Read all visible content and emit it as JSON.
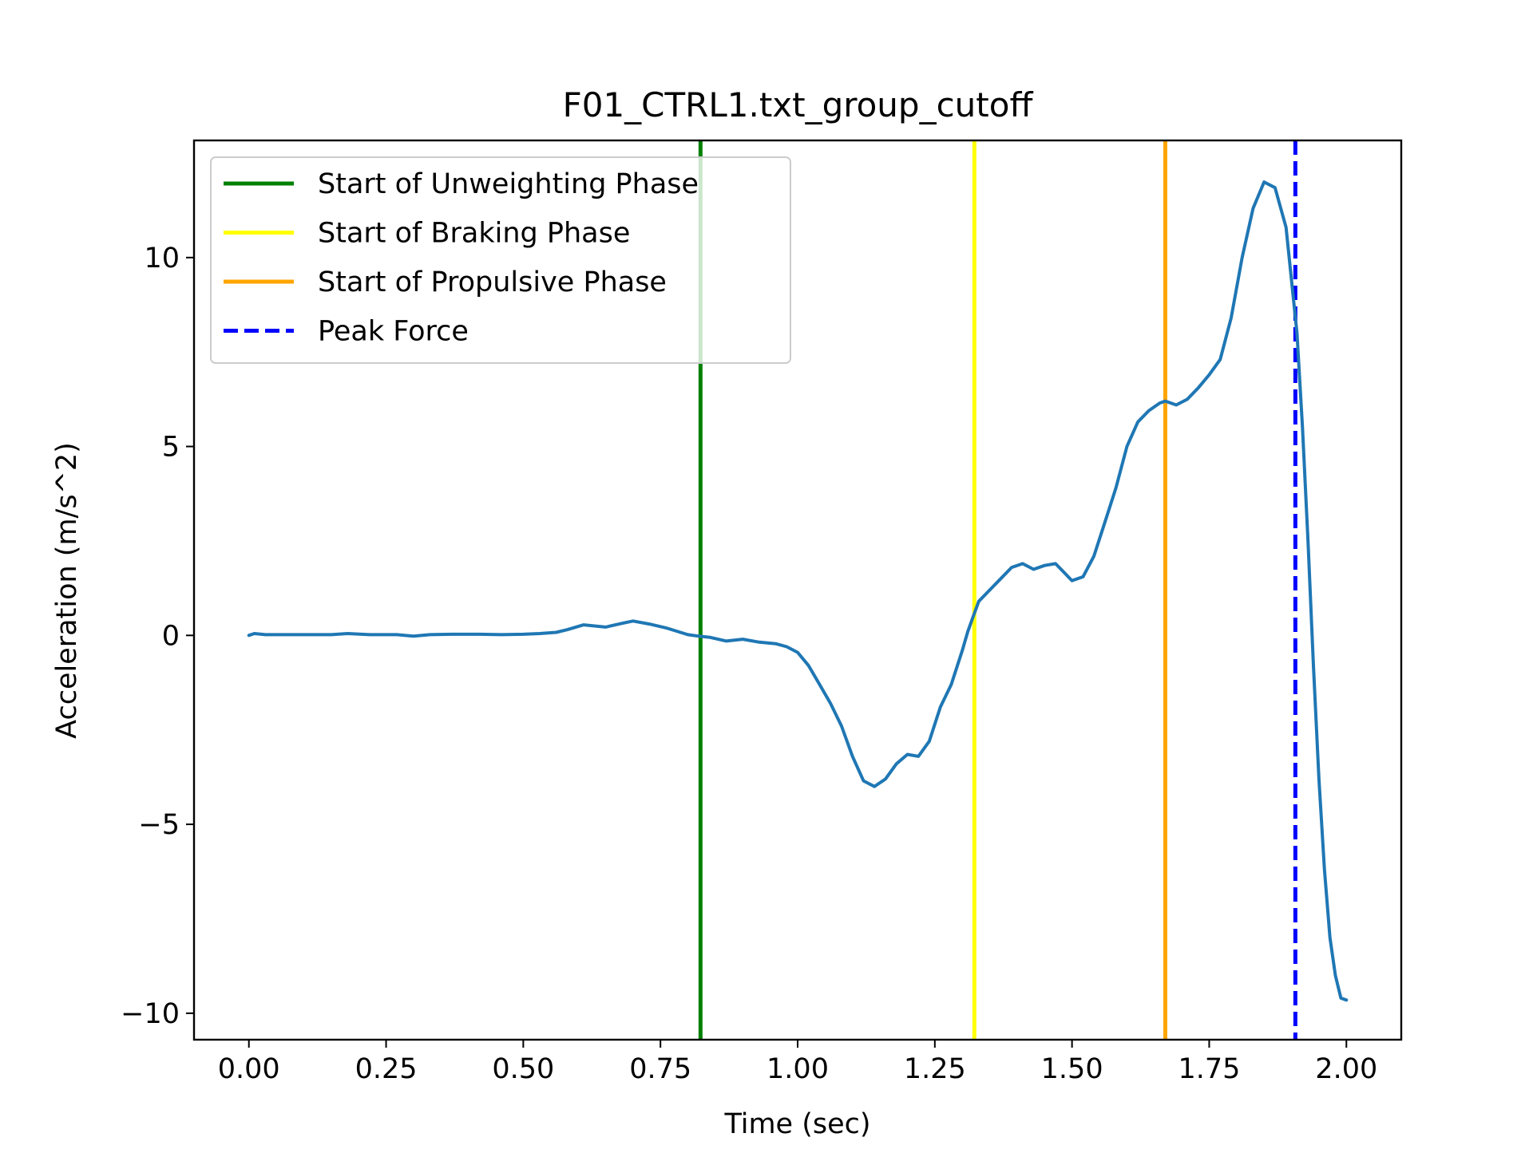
{
  "chart_data": {
    "type": "line",
    "title": "F01_CTRL1.txt_group_cutoff",
    "xlabel": "Time (sec)",
    "ylabel": "Acceleration (m/s^2)",
    "xlim": [
      -0.1,
      2.1
    ],
    "ylim": [
      -10.7,
      13.1
    ],
    "x_ticks": [
      0.0,
      0.25,
      0.5,
      0.75,
      1.0,
      1.25,
      1.5,
      1.75,
      2.0
    ],
    "x_tick_labels": [
      "0.00",
      "0.25",
      "0.50",
      "0.75",
      "1.00",
      "1.25",
      "1.50",
      "1.75",
      "2.00"
    ],
    "y_ticks": [
      -10,
      -5,
      0,
      5,
      10
    ],
    "y_tick_labels": [
      "−10",
      "−5",
      "0",
      "5",
      "10"
    ],
    "grid": false,
    "legend_position": "upper-left",
    "series": [
      {
        "color": "#1f77b4",
        "x": [
          0.0,
          0.01,
          0.03,
          0.06,
          0.1,
          0.15,
          0.18,
          0.22,
          0.27,
          0.3,
          0.33,
          0.37,
          0.42,
          0.46,
          0.5,
          0.53,
          0.56,
          0.58,
          0.61,
          0.65,
          0.68,
          0.7,
          0.73,
          0.76,
          0.8,
          0.82,
          0.84,
          0.87,
          0.9,
          0.93,
          0.96,
          0.98,
          1.0,
          1.02,
          1.04,
          1.06,
          1.08,
          1.1,
          1.12,
          1.14,
          1.15,
          1.16,
          1.18,
          1.2,
          1.22,
          1.24,
          1.26,
          1.28,
          1.3,
          1.31,
          1.32,
          1.33,
          1.35,
          1.37,
          1.39,
          1.41,
          1.43,
          1.45,
          1.47,
          1.49,
          1.5,
          1.52,
          1.54,
          1.56,
          1.58,
          1.6,
          1.62,
          1.64,
          1.66,
          1.67,
          1.69,
          1.71,
          1.73,
          1.75,
          1.77,
          1.79,
          1.81,
          1.83,
          1.85,
          1.87,
          1.89,
          1.91,
          1.92,
          1.93,
          1.94,
          1.95,
          1.96,
          1.97,
          1.98,
          1.99,
          2.0
        ],
        "y": [
          0.0,
          0.05,
          0.02,
          0.02,
          0.02,
          0.02,
          0.05,
          0.02,
          0.02,
          -0.02,
          0.02,
          0.03,
          0.03,
          0.02,
          0.03,
          0.05,
          0.08,
          0.15,
          0.28,
          0.22,
          0.32,
          0.38,
          0.3,
          0.2,
          0.02,
          -0.02,
          -0.05,
          -0.15,
          -0.1,
          -0.18,
          -0.22,
          -0.3,
          -0.45,
          -0.8,
          -1.3,
          -1.8,
          -2.4,
          -3.2,
          -3.85,
          -4.0,
          -3.9,
          -3.8,
          -3.4,
          -3.15,
          -3.2,
          -2.8,
          -1.9,
          -1.3,
          -0.4,
          0.1,
          0.5,
          0.9,
          1.2,
          1.5,
          1.8,
          1.9,
          1.75,
          1.85,
          1.9,
          1.6,
          1.45,
          1.55,
          2.1,
          3.0,
          3.9,
          5.0,
          5.65,
          5.95,
          6.15,
          6.2,
          6.1,
          6.25,
          6.55,
          6.9,
          7.3,
          8.4,
          10.0,
          11.3,
          12.0,
          11.85,
          10.8,
          8.0,
          5.5,
          2.5,
          -0.8,
          -3.8,
          -6.2,
          -8.0,
          -9.0,
          -9.6,
          -9.65
        ]
      }
    ],
    "vertical_lines": [
      {
        "name": "Start of Unweighting Phase",
        "x": 0.823,
        "color": "#008000",
        "style": "solid"
      },
      {
        "name": "Start of Braking Phase",
        "x": 1.322,
        "color": "#ffff00",
        "style": "solid"
      },
      {
        "name": "Start of Propulsive Phase",
        "x": 1.67,
        "color": "#ffa500",
        "style": "solid"
      },
      {
        "name": "Peak Force",
        "x": 1.907,
        "color": "#0000ff",
        "style": "dashed"
      }
    ],
    "legend": [
      "Start of Unweighting Phase",
      "Start of Braking Phase",
      "Start of Propulsive Phase",
      "Peak Force"
    ]
  }
}
